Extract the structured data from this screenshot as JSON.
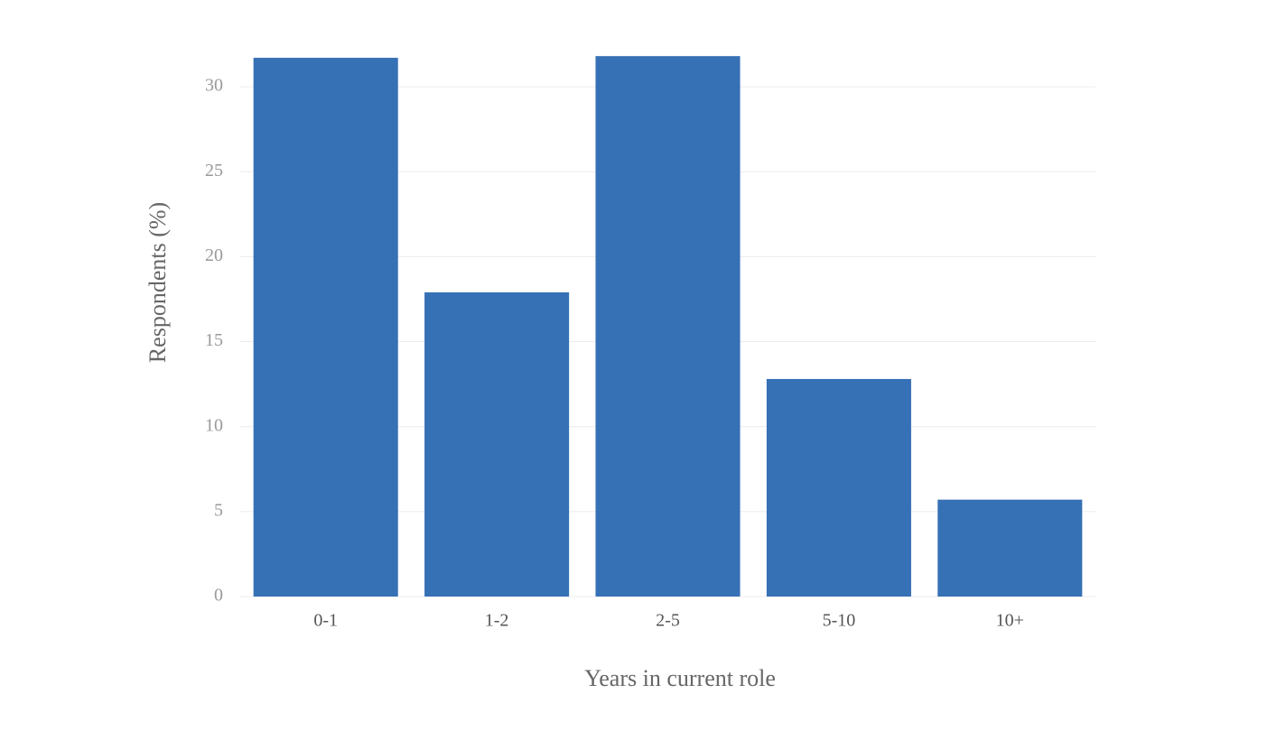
{
  "chart_data": {
    "type": "bar",
    "x_label": "Years in current role",
    "y_label": "Respondents (%)",
    "categories": [
      "0-1",
      "1-2",
      "2-5",
      "5-10",
      "10+"
    ],
    "values": [
      31.7,
      17.9,
      31.8,
      12.8,
      5.7
    ],
    "color": "#3670b5",
    "ylim": [
      0,
      32
    ],
    "yticks": [
      0,
      5,
      10,
      15,
      20,
      25,
      30
    ],
    "grid": true
  }
}
